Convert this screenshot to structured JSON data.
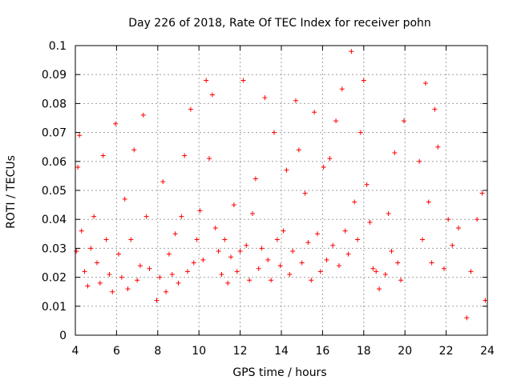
{
  "chart_data": {
    "type": "scatter",
    "title": "Day 226 of 2018, Rate Of TEC Index for receiver pohn",
    "xlabel": "GPS time / hours",
    "ylabel": "ROTI / TECUs",
    "xlim": [
      4,
      24
    ],
    "ylim": [
      0,
      0.1
    ],
    "xticks": [
      4,
      6,
      8,
      10,
      12,
      14,
      16,
      18,
      20,
      22,
      24
    ],
    "yticks": [
      0,
      0.01,
      0.02,
      0.03,
      0.04,
      0.05,
      0.06,
      0.07,
      0.08,
      0.09,
      0.1
    ],
    "grid": true,
    "marker": "+",
    "color": "#ff0000",
    "series": [
      {
        "name": "ROTI",
        "x": [
          4.05,
          4.12,
          4.2,
          4.3,
          4.45,
          4.6,
          4.75,
          4.9,
          5.05,
          5.2,
          5.35,
          5.5,
          5.65,
          5.8,
          5.95,
          6.1,
          6.25,
          6.4,
          6.55,
          6.7,
          6.85,
          7.0,
          7.15,
          7.3,
          7.45,
          7.6,
          7.95,
          8.1,
          8.25,
          8.4,
          8.55,
          8.7,
          8.85,
          9.0,
          9.15,
          9.3,
          9.45,
          9.6,
          9.75,
          9.9,
          10.05,
          10.2,
          10.35,
          10.5,
          10.65,
          10.8,
          10.95,
          11.1,
          11.25,
          11.4,
          11.55,
          11.7,
          11.85,
          12.0,
          12.15,
          12.3,
          12.45,
          12.6,
          12.75,
          12.9,
          13.05,
          13.2,
          13.35,
          13.5,
          13.65,
          13.8,
          13.95,
          14.1,
          14.25,
          14.4,
          14.55,
          14.7,
          14.85,
          15.0,
          15.15,
          15.3,
          15.45,
          15.6,
          15.75,
          15.9,
          16.05,
          16.2,
          16.35,
          16.5,
          16.65,
          16.8,
          16.95,
          17.1,
          17.25,
          17.4,
          17.55,
          17.7,
          17.85,
          18.0,
          18.15,
          18.3,
          18.45,
          18.6,
          18.75,
          19.05,
          19.2,
          19.35,
          19.5,
          19.65,
          19.8,
          19.95,
          20.7,
          20.85,
          21.0,
          21.15,
          21.3,
          21.45,
          21.6,
          21.9,
          22.1,
          22.3,
          22.6,
          23.0,
          23.2,
          23.5,
          23.75,
          23.9
        ],
        "y": [
          0.029,
          0.058,
          0.069,
          0.036,
          0.022,
          0.017,
          0.03,
          0.041,
          0.025,
          0.018,
          0.062,
          0.033,
          0.021,
          0.015,
          0.073,
          0.028,
          0.02,
          0.047,
          0.016,
          0.033,
          0.064,
          0.019,
          0.024,
          0.076,
          0.041,
          0.023,
          0.012,
          0.02,
          0.053,
          0.015,
          0.028,
          0.021,
          0.035,
          0.018,
          0.041,
          0.062,
          0.022,
          0.078,
          0.025,
          0.033,
          0.043,
          0.026,
          0.088,
          0.061,
          0.083,
          0.037,
          0.029,
          0.021,
          0.033,
          0.018,
          0.027,
          0.045,
          0.022,
          0.029,
          0.088,
          0.031,
          0.019,
          0.042,
          0.054,
          0.023,
          0.03,
          0.082,
          0.026,
          0.019,
          0.07,
          0.033,
          0.024,
          0.036,
          0.057,
          0.021,
          0.029,
          0.081,
          0.064,
          0.025,
          0.049,
          0.032,
          0.019,
          0.077,
          0.035,
          0.022,
          0.058,
          0.026,
          0.061,
          0.031,
          0.074,
          0.024,
          0.085,
          0.036,
          0.028,
          0.098,
          0.046,
          0.033,
          0.07,
          0.088,
          0.052,
          0.039,
          0.023,
          0.022,
          0.016,
          0.021,
          0.042,
          0.029,
          0.063,
          0.025,
          0.019,
          0.074,
          0.06,
          0.033,
          0.087,
          0.046,
          0.025,
          0.078,
          0.065,
          0.023,
          0.04,
          0.031,
          0.037,
          0.006,
          0.022,
          0.04,
          0.049,
          0.012
        ]
      }
    ]
  }
}
